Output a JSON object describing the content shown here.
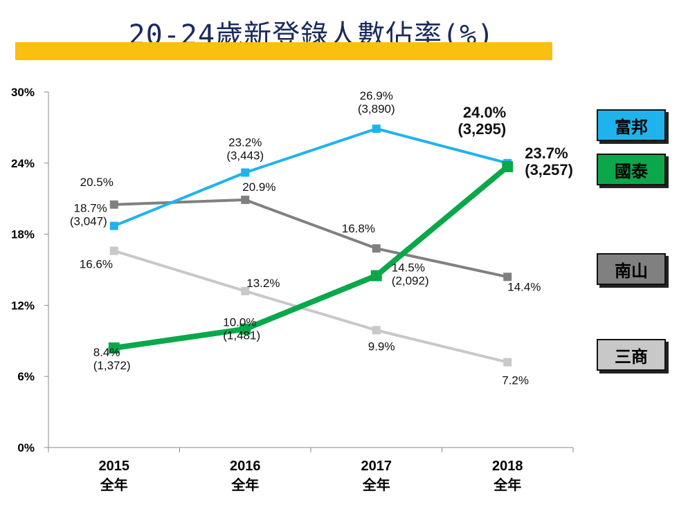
{
  "chart_data": {
    "type": "line",
    "title": "20-24歲新登錄人數佔率(%)",
    "categories": [
      [
        "2015",
        "全年"
      ],
      [
        "2016",
        "全年"
      ],
      [
        "2017",
        "全年"
      ],
      [
        "2018",
        "全年"
      ]
    ],
    "y_ticks": [
      "0%",
      "6%",
      "12%",
      "18%",
      "24%",
      "30%"
    ],
    "ylim": [
      0,
      30
    ],
    "series": [
      {
        "name": "富邦",
        "color": "#1fb3ee",
        "values": [
          18.7,
          23.2,
          26.9,
          24.0
        ],
        "labels": [
          [
            "18.7%",
            "(3,047)"
          ],
          [
            "23.2%",
            "(3,443)"
          ],
          [
            "26.9%",
            "(3,890)"
          ],
          [
            "24.0%",
            "(3,295)"
          ]
        ]
      },
      {
        "name": "國泰",
        "color": "#0aa84a",
        "values": [
          8.4,
          10.0,
          14.5,
          23.7
        ],
        "labels": [
          [
            "8.4%",
            "(1,372)"
          ],
          [
            "10.0%",
            "(1,481)"
          ],
          [
            "14.5%",
            "(2,092)"
          ],
          [
            "23.7%",
            "(3,257)"
          ]
        ]
      },
      {
        "name": "南山",
        "color": "#808080",
        "values": [
          20.5,
          20.9,
          16.8,
          14.4
        ],
        "labels": [
          [
            "20.5%"
          ],
          [
            "20.9%"
          ],
          [
            "16.8%"
          ],
          [
            "14.4%"
          ]
        ]
      },
      {
        "name": "三商",
        "color": "#c8c8c8",
        "values": [
          16.6,
          13.2,
          9.9,
          7.2
        ],
        "labels": [
          [
            "16.6%"
          ],
          [
            "13.2%"
          ],
          [
            "9.9%"
          ],
          [
            "7.2%"
          ]
        ]
      }
    ]
  }
}
